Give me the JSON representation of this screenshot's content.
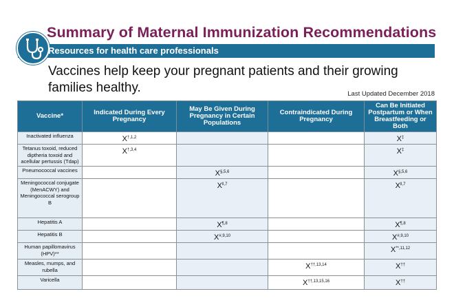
{
  "header": {
    "title": "Summary of Maternal Immunization Recommendations",
    "subtitle": "Resources for health care professionals",
    "headline": "Vaccines help keep your pregnant patients and their growing families healthy.",
    "updated": "Last Updated December 2018",
    "logo_icon": "stethoscope-icon"
  },
  "colors": {
    "title": "#7a1f57",
    "banner": "#1e6f98",
    "row_shade": "#e6eef5"
  },
  "table": {
    "columns": [
      "Vaccine*",
      "Indicated During Every Pregnancy",
      "May Be Given During Pregnancy in Certain Populations",
      "Contraindicated During Pregnancy",
      "Can Be Initiated Postpartum or When Breastfeeding or Both"
    ],
    "rows": [
      {
        "vaccine": "Inactivated influenza",
        "cells": [
          {
            "mark": "X",
            "sup": "†,1,2"
          },
          null,
          null,
          {
            "mark": "X",
            "sup": "‡"
          }
        ]
      },
      {
        "vaccine": "Tetanus toxoid, reduced diptheria toxoid and acellular pertussis (Tdap)",
        "cells": [
          {
            "mark": "X",
            "sup": "†,3,4"
          },
          null,
          null,
          {
            "mark": "X",
            "sup": "‡"
          }
        ]
      },
      {
        "vaccine": "Pneumococcal vaccines",
        "cells": [
          null,
          {
            "mark": "X",
            "sup": "§,5,6"
          },
          null,
          {
            "mark": "X",
            "sup": "§,5,6"
          }
        ]
      },
      {
        "vaccine": "Meningococcal conjugate (MenACWY) and Meningococcal serogroup B",
        "cells": [
          null,
          {
            "mark": "X",
            "sup": "‖,7"
          },
          null,
          {
            "mark": "X",
            "sup": "‖,7"
          }
        ]
      },
      {
        "vaccine": "Hepatitis A",
        "cells": [
          null,
          {
            "mark": "X",
            "sup": "¶,8"
          },
          null,
          {
            "mark": "X",
            "sup": "¶,8"
          }
        ]
      },
      {
        "vaccine": "Hepatitis B",
        "cells": [
          null,
          {
            "mark": "X",
            "sup": "#,9,10"
          },
          null,
          {
            "mark": "X",
            "sup": "#,9,10"
          }
        ]
      },
      {
        "vaccine": "Human papillomavirus (HPV)**",
        "cells": [
          null,
          null,
          null,
          {
            "mark": "X",
            "sup": "**,11,12"
          }
        ]
      },
      {
        "vaccine": "Measles, mumps, and rubella",
        "cells": [
          null,
          null,
          {
            "mark": "X",
            "sup": "††,13,14"
          },
          {
            "mark": "X",
            "sup": "††"
          }
        ]
      },
      {
        "vaccine": "Varicella",
        "cells": [
          null,
          null,
          {
            "mark": "X",
            "sup": "††,13,15,16"
          },
          {
            "mark": "X",
            "sup": "††"
          }
        ]
      }
    ]
  }
}
